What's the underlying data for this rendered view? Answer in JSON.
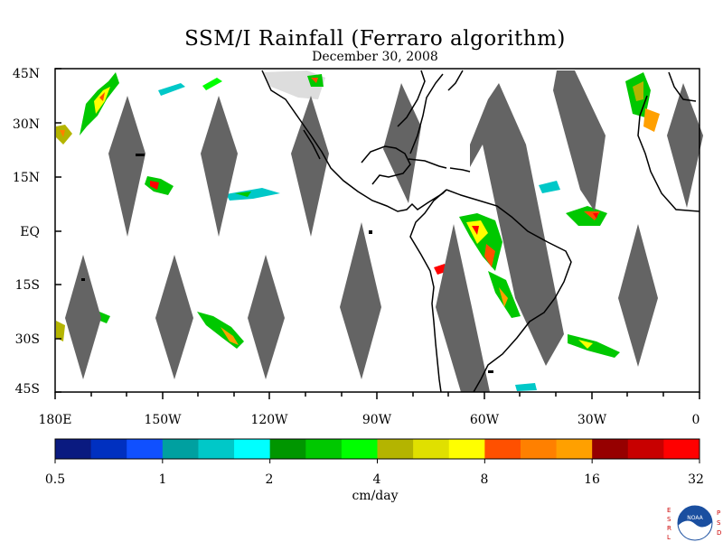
{
  "title": "SSM/I Rainfall (Ferraro algorithm)",
  "subtitle": "December 30, 2008",
  "lat_labels": [
    "45N",
    "30N",
    "15N",
    "EQ",
    "15S",
    "30S",
    "45S"
  ],
  "lon_labels": [
    "180E",
    "150W",
    "120W",
    "90W",
    "60W",
    "30W",
    "0"
  ],
  "colorbar": {
    "ticks": [
      "0.5",
      "1",
      "2",
      "4",
      "8",
      "16",
      "32"
    ],
    "units": "cm/day",
    "colors": [
      "#0a1a80",
      "#0030c0",
      "#1050ff",
      "#00a0a0",
      "#00c8c8",
      "#00ffff",
      "#009600",
      "#00c800",
      "#00ff00",
      "#b4b400",
      "#e0e000",
      "#ffff00",
      "#ff5000",
      "#ff8000",
      "#ffa000",
      "#960000",
      "#c80000",
      "#ff0000"
    ]
  },
  "logo": {
    "text": "NOAA",
    "left_letters": [
      "E",
      "S",
      "R",
      "L"
    ],
    "right_letters": [
      "P",
      "S",
      "D"
    ]
  },
  "map": {
    "lat_range": [
      -45,
      45
    ],
    "lon_range": [
      -180,
      0
    ],
    "swath_color": "#646464",
    "coast_color": "#000000"
  }
}
